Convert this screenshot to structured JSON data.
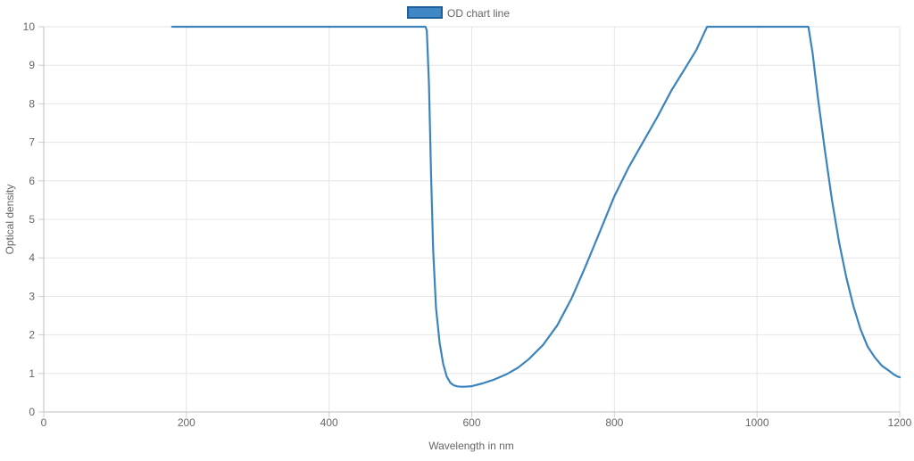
{
  "chart_data": {
    "type": "line",
    "legend": {
      "label": "OD chart line",
      "position": "top",
      "color": "#2f7bb8"
    },
    "xlabel": "Wavelength in nm",
    "ylabel": "Optical density",
    "xlim": [
      0,
      1200
    ],
    "ylim": [
      0,
      10
    ],
    "x_ticks": [
      0,
      200,
      400,
      600,
      800,
      1000,
      1200
    ],
    "y_ticks": [
      0,
      1,
      2,
      3,
      4,
      5,
      6,
      7,
      8,
      9,
      10
    ],
    "grid": true,
    "series": [
      {
        "name": "OD chart line",
        "color": "#3b84bd",
        "points": [
          [
            180,
            10
          ],
          [
            300,
            10
          ],
          [
            400,
            10
          ],
          [
            500,
            10
          ],
          [
            535,
            10
          ],
          [
            537,
            9.9
          ],
          [
            540,
            8.5
          ],
          [
            543,
            6.2
          ],
          [
            546,
            4.2
          ],
          [
            550,
            2.7
          ],
          [
            555,
            1.8
          ],
          [
            560,
            1.25
          ],
          [
            565,
            0.92
          ],
          [
            570,
            0.76
          ],
          [
            575,
            0.69
          ],
          [
            580,
            0.665
          ],
          [
            585,
            0.655
          ],
          [
            590,
            0.655
          ],
          [
            600,
            0.67
          ],
          [
            615,
            0.74
          ],
          [
            630,
            0.83
          ],
          [
            650,
            0.99
          ],
          [
            665,
            1.15
          ],
          [
            680,
            1.37
          ],
          [
            700,
            1.74
          ],
          [
            720,
            2.25
          ],
          [
            740,
            2.95
          ],
          [
            760,
            3.8
          ],
          [
            780,
            4.7
          ],
          [
            800,
            5.6
          ],
          [
            820,
            6.35
          ],
          [
            840,
            7.0
          ],
          [
            860,
            7.65
          ],
          [
            880,
            8.35
          ],
          [
            900,
            8.95
          ],
          [
            915,
            9.4
          ],
          [
            925,
            9.8
          ],
          [
            930,
            10
          ],
          [
            1000,
            10
          ],
          [
            1072,
            10
          ],
          [
            1078,
            9.3
          ],
          [
            1085,
            8.2
          ],
          [
            1095,
            6.8
          ],
          [
            1105,
            5.5
          ],
          [
            1115,
            4.4
          ],
          [
            1125,
            3.5
          ],
          [
            1135,
            2.75
          ],
          [
            1145,
            2.15
          ],
          [
            1155,
            1.7
          ],
          [
            1165,
            1.42
          ],
          [
            1175,
            1.2
          ],
          [
            1185,
            1.07
          ],
          [
            1192,
            0.97
          ],
          [
            1197,
            0.92
          ],
          [
            1200,
            0.9
          ]
        ]
      }
    ]
  }
}
